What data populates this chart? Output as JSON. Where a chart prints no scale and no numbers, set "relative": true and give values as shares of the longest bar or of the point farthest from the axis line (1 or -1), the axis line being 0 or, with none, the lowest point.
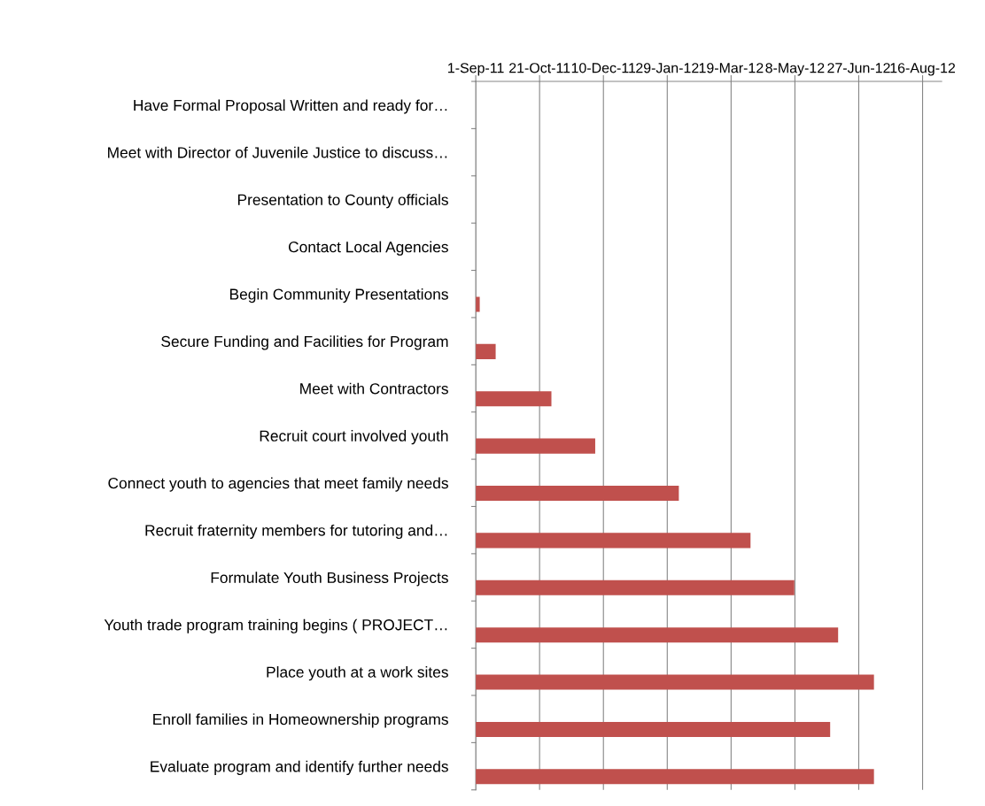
{
  "chart_data": {
    "type": "bar",
    "orientation": "horizontal",
    "relative": true,
    "categories": [
      "Have Formal Proposal Written and ready for…",
      "Meet with Director of Juvenile Justice to discuss…",
      "Presentation to County officials",
      "Contact Local Agencies",
      "Begin Community Presentations",
      "Secure Funding and Facilities for Program",
      "Meet with Contractors",
      "Recruit court involved youth",
      "Connect youth to agencies that meet family needs",
      "Recruit fraternity members for tutoring and…",
      "Formulate Youth Business Projects",
      "Youth trade program training begins ( PROJECT…",
      "Place youth at a work sites",
      "Enroll families in Homeownership programs",
      "Evaluate program and identify further needs"
    ],
    "series": [
      {
        "color": "#c0504d",
        "values": [
          0,
          0,
          0,
          0,
          0.01,
          0.05,
          0.19,
          0.3,
          0.51,
          0.69,
          0.8,
          0.91,
          1,
          0.89,
          1
        ]
      }
    ],
    "annotations": [
      "1-Sep-11",
      "21-Oct-11",
      "10-Dec-11",
      "29-Jan-12",
      "19-Mar-12",
      "8-May-12",
      "27-Jun-12",
      "16-Aug-12"
    ],
    "grid": "x"
  }
}
